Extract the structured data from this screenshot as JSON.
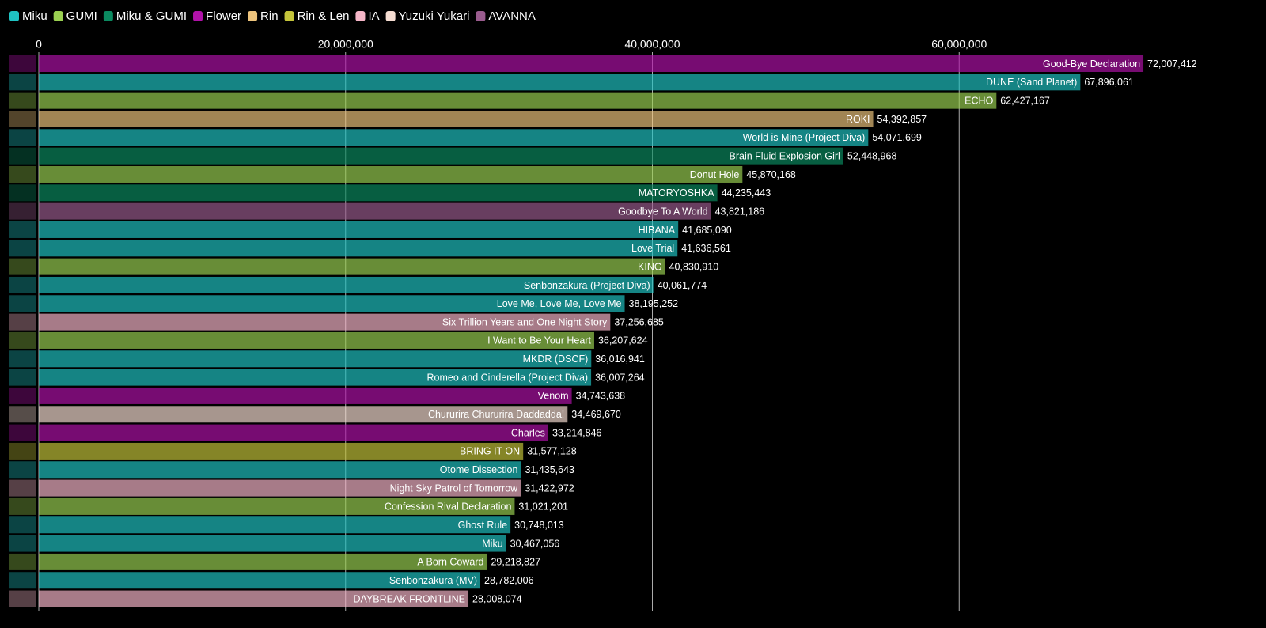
{
  "chart_data": {
    "type": "bar",
    "series": [
      {
        "name": "Miku",
        "color": "#1fc3c3"
      },
      {
        "name": "GUMI",
        "color": "#9ad051"
      },
      {
        "name": "Miku & GUMI",
        "color": "#0b8a60"
      },
      {
        "name": "Flower",
        "color": "#b012a8"
      },
      {
        "name": "Rin",
        "color": "#eec47c"
      },
      {
        "name": "Rin & Len",
        "color": "#c4c43a"
      },
      {
        "name": "IA",
        "color": "#f6b6c8"
      },
      {
        "name": "Yuzuki Yukari",
        "color": "#f6ddd2"
      },
      {
        "name": "AVANNA",
        "color": "#9a5c8e"
      }
    ],
    "categories": [
      "Good-Bye Declaration",
      "DUNE (Sand Planet)",
      "ECHO",
      "ROKI",
      "World is Mine (Project Diva)",
      "Brain Fluid Explosion Girl",
      "Donut Hole",
      "MATORYOSHKA",
      "Goodbye To A World",
      "HIBANA",
      "Love Trial",
      "KING",
      "Senbonzakura (Project Diva)",
      "Love Me, Love Me, Love Me",
      "Six Trillion Years and One Night Story",
      "I Want to Be Your Heart",
      "MKDR (DSCF)",
      "Romeo and Cinderella (Project Diva)",
      "Venom",
      "Chururira Chururira Daddadda!",
      "Charles",
      "BRING IT ON",
      "Otome Dissection",
      "Night Sky Patrol of Tomorrow",
      "Confession Rival Declaration",
      "Ghost Rule",
      "Miku",
      "A Born Coward",
      "Senbonzakura (MV)",
      "DAYBREAK FRONTLINE"
    ],
    "groups": [
      "Flower",
      "Miku",
      "GUMI",
      "Rin",
      "Miku",
      "Miku & GUMI",
      "GUMI",
      "Miku & GUMI",
      "AVANNA",
      "Miku",
      "Miku",
      "GUMI",
      "Miku",
      "Miku",
      "IA",
      "GUMI",
      "Miku",
      "Miku",
      "Flower",
      "Yuzuki Yukari",
      "Flower",
      "Rin & Len",
      "Miku",
      "IA",
      "GUMI",
      "Miku",
      "Miku",
      "GUMI",
      "Miku",
      "IA"
    ],
    "values": [
      72007412,
      67896061,
      62427167,
      54392857,
      54071699,
      52448968,
      45870168,
      44235443,
      43821186,
      41685090,
      41636561,
      40830910,
      40061774,
      38195252,
      37256685,
      36207624,
      36016941,
      36007264,
      34743638,
      34469670,
      33214846,
      31577128,
      31435643,
      31422972,
      31021201,
      30748013,
      30467056,
      29218827,
      28782006,
      28008074
    ],
    "value_labels": [
      "72,007,412",
      "67,896,061",
      "62,427,167",
      "54,392,857",
      "54,071,699",
      "52,448,968",
      "45,870,168",
      "44,235,443",
      "43,821,186",
      "41,685,090",
      "41,636,561",
      "40,830,910",
      "40,061,774",
      "38,195,252",
      "37,256,685",
      "36,207,624",
      "36,016,941",
      "36,007,264",
      "34,743,638",
      "34,469,670",
      "33,214,846",
      "31,577,128",
      "31,435,643",
      "31,422,972",
      "31,021,201",
      "30,748,013",
      "30,467,056",
      "29,218,827",
      "28,782,006",
      "28,008,074"
    ],
    "xlim": [
      0,
      80000000
    ],
    "xticks": [
      0,
      {
        "value": 20000000,
        "label": "20,000,000"
      },
      {
        "value": 40000000,
        "label": "40,000,000"
      },
      {
        "value": 60000000,
        "label": "60,000,000"
      }
    ],
    "grid": true
  }
}
